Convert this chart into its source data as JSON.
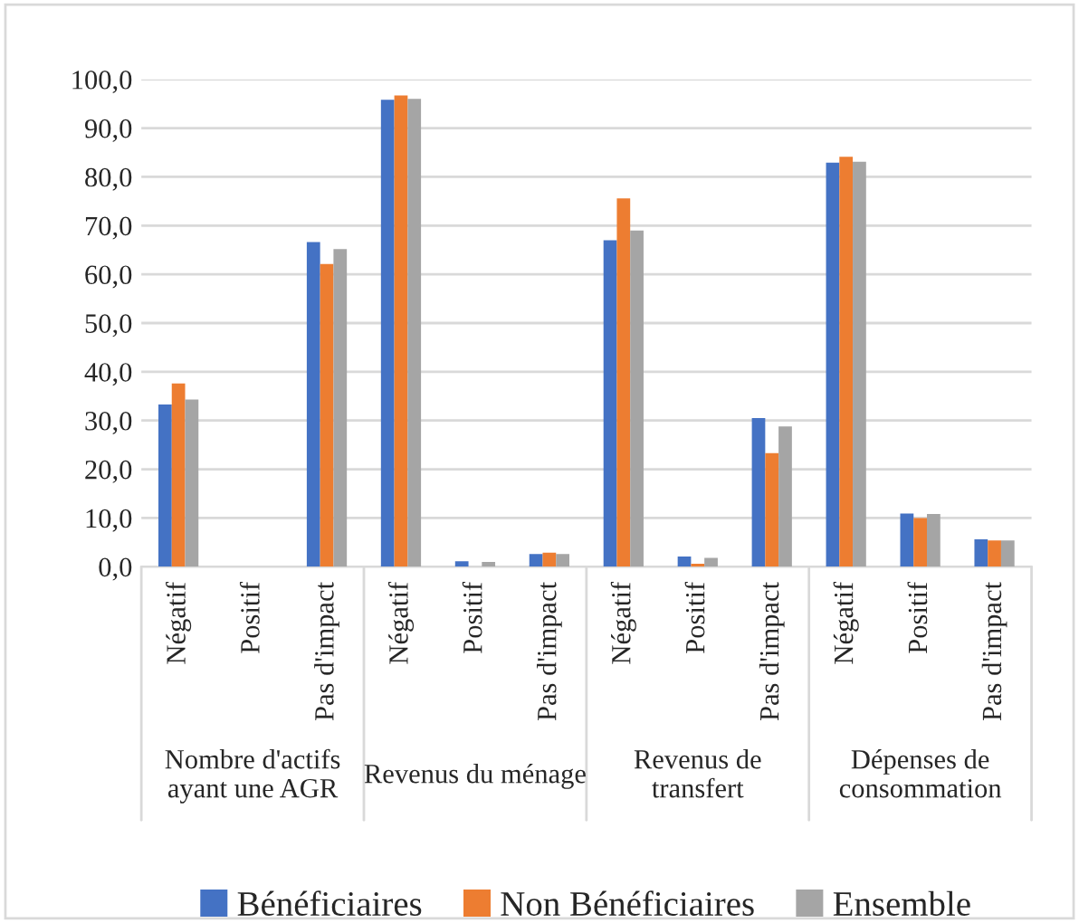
{
  "chart_data": {
    "type": "bar",
    "categories": [
      "Négatif",
      "Positif",
      "Pas d'impact",
      "Négatif",
      "Positif",
      "Pas d'impact",
      "Négatif",
      "Positif",
      "Pas d'impact",
      "Négatif",
      "Positif",
      "Pas d'impact"
    ],
    "series": [
      {
        "name": "Bénéficiaires",
        "color": "#4472c4",
        "values": [
          33.3,
          0,
          66.6,
          95.8,
          1.1,
          2.6,
          67.0,
          2.1,
          30.5,
          82.9,
          10.9,
          5.6
        ]
      },
      {
        "name": "Non Bénéficiaires",
        "color": "#ed7d31",
        "values": [
          37.6,
          0,
          62.1,
          96.7,
          0,
          2.9,
          75.6,
          0.6,
          23.3,
          84.1,
          10.0,
          5.4
        ]
      },
      {
        "name": "Ensemble",
        "color": "#a5a5a5",
        "values": [
          34.3,
          0,
          65.2,
          96.0,
          1.0,
          2.6,
          69.0,
          1.8,
          28.8,
          83.1,
          10.8,
          5.4
        ]
      }
    ],
    "annotations": [
      "Nombre d'actifs\nayant une AGR",
      "Revenus du ménage",
      "Revenus de\ntransfert",
      "Dépenses de\nconsommation"
    ],
    "ylim": [
      0,
      100
    ],
    "yticks": [
      {
        "value": 0,
        "label": "0,0"
      },
      {
        "value": 10,
        "label": "10,0"
      },
      {
        "value": 20,
        "label": "20,0"
      },
      {
        "value": 30,
        "label": "30,0"
      },
      {
        "value": 40,
        "label": "40,0"
      },
      {
        "value": 50,
        "label": "50,0"
      },
      {
        "value": 60,
        "label": "60,0"
      },
      {
        "value": 70,
        "label": "70,0"
      },
      {
        "value": 80,
        "label": "80,0"
      },
      {
        "value": 90,
        "label": "90,0"
      },
      {
        "value": 100,
        "label": "100,0"
      }
    ],
    "grid": "y",
    "legend": "bottom"
  }
}
